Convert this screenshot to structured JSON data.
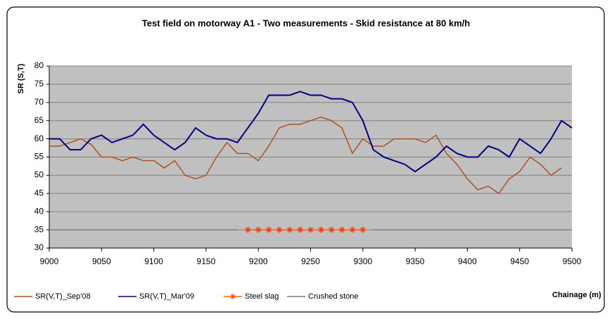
{
  "chart_data": {
    "type": "line",
    "title": "Test field on motorway A1 - Two measurements - Skid resistance at 80 km/h",
    "y_label": "SR (S,T)",
    "x_label": "Chainage (m)",
    "x": [
      9000,
      9010,
      9020,
      9030,
      9040,
      9050,
      9060,
      9070,
      9080,
      9090,
      9100,
      9110,
      9120,
      9130,
      9140,
      9150,
      9160,
      9170,
      9180,
      9190,
      9200,
      9210,
      9220,
      9230,
      9240,
      9250,
      9260,
      9270,
      9280,
      9290,
      9300,
      9310,
      9320,
      9330,
      9340,
      9350,
      9360,
      9370,
      9380,
      9390,
      9400,
      9410,
      9420,
      9430,
      9440,
      9450,
      9460,
      9470,
      9480,
      9490,
      9500
    ],
    "series": [
      {
        "name": "SR(V,T)_Sep'08",
        "color": "#b0501e",
        "values": [
          58,
          58,
          59,
          60,
          58.5,
          55,
          55,
          54,
          55,
          54,
          54,
          52,
          54,
          50,
          49,
          50,
          55,
          59,
          56,
          56,
          54,
          58,
          63,
          64,
          64,
          65,
          66,
          65,
          63,
          56,
          60,
          58,
          58,
          60,
          60,
          60,
          59,
          61,
          56,
          53,
          49,
          46,
          47,
          45,
          49,
          51,
          55,
          53,
          50,
          52,
          null
        ]
      },
      {
        "name": "SR(V,T)_Mar'09",
        "color": "#000080",
        "values": [
          60,
          60,
          57,
          57,
          60,
          61,
          59,
          60,
          61,
          64,
          61,
          59,
          57,
          59,
          63,
          61,
          60,
          60,
          59,
          63,
          67,
          72,
          72,
          72,
          73,
          72,
          72,
          71,
          71,
          70,
          65,
          57,
          55,
          54,
          53,
          51,
          53,
          55,
          58,
          56,
          55,
          55,
          58,
          57,
          55,
          60,
          58,
          56,
          60,
          65,
          63
        ]
      },
      {
        "name": "Steel slag",
        "color": "#ff6600",
        "marker": "asterisk",
        "values": [
          null,
          null,
          null,
          null,
          null,
          null,
          null,
          null,
          null,
          null,
          null,
          null,
          null,
          null,
          null,
          null,
          null,
          null,
          null,
          35,
          35,
          35,
          35,
          35,
          35,
          35,
          35,
          35,
          35,
          35,
          35,
          null,
          null,
          null,
          null,
          null,
          null,
          null,
          null,
          null,
          null,
          null,
          null,
          null,
          null,
          null,
          null,
          null,
          null,
          null,
          null
        ]
      },
      {
        "name": "Crushed stone",
        "color": "#808080",
        "values": [
          35,
          35,
          35,
          35,
          35,
          35,
          35,
          35,
          35,
          35,
          35,
          35,
          35,
          35,
          35,
          35,
          35,
          35,
          35,
          null,
          null,
          null,
          null,
          null,
          null,
          null,
          null,
          null,
          null,
          null,
          null,
          35,
          35,
          35,
          35,
          35,
          35,
          35,
          35,
          35,
          35,
          35,
          35,
          35,
          35,
          35,
          35,
          35,
          35,
          35,
          35
        ]
      }
    ],
    "xlim": [
      9000,
      9500
    ],
    "xticks": [
      9000,
      9050,
      9100,
      9150,
      9200,
      9250,
      9300,
      9350,
      9400,
      9450,
      9500
    ],
    "ylim": [
      30,
      80
    ],
    "yticks": [
      30,
      35,
      40,
      45,
      50,
      55,
      60,
      65,
      70,
      75,
      80
    ],
    "grid": true,
    "legend": "bottom"
  }
}
